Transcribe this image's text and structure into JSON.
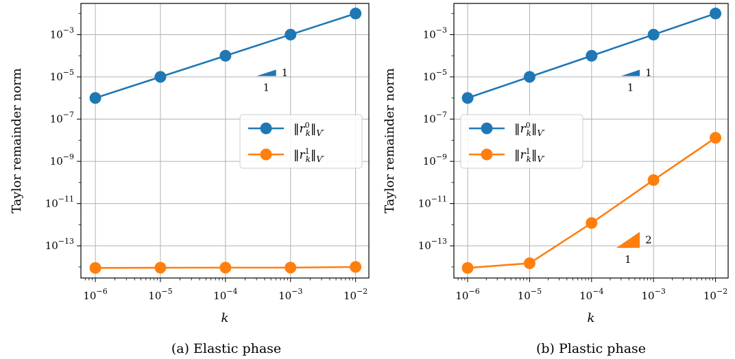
{
  "chart_data": [
    {
      "type": "line",
      "caption": "(a) Elastic phase",
      "xlabel": "k",
      "ylabel": "Taylor remainder norm",
      "x_scale": "log",
      "y_scale": "log",
      "xlim": [
        6e-07,
        0.016
      ],
      "ylim": [
        3e-15,
        0.03
      ],
      "xticks": [
        {
          "value": 1e-06,
          "base": "10",
          "exp": "−6"
        },
        {
          "value": 1e-05,
          "base": "10",
          "exp": "−5"
        },
        {
          "value": 0.0001,
          "base": "10",
          "exp": "−4"
        },
        {
          "value": 0.001,
          "base": "10",
          "exp": "−3"
        },
        {
          "value": 0.01,
          "base": "10",
          "exp": "−2"
        }
      ],
      "yticks": [
        {
          "value": 1e-13,
          "base": "10",
          "exp": "−13"
        },
        {
          "value": 1e-11,
          "base": "10",
          "exp": "−11"
        },
        {
          "value": 1e-09,
          "base": "10",
          "exp": "−9"
        },
        {
          "value": 1e-07,
          "base": "10",
          "exp": "−7"
        },
        {
          "value": 1e-05,
          "base": "10",
          "exp": "−5"
        },
        {
          "value": 0.001,
          "base": "10",
          "exp": "−3"
        }
      ],
      "grid": true,
      "legend_position": "center-right",
      "x": [
        1e-06,
        1e-05,
        0.0001,
        0.001,
        0.01
      ],
      "series": [
        {
          "name": "r0",
          "color": "#1f77b4",
          "values": [
            1e-06,
            1e-05,
            0.0001,
            0.001,
            0.01
          ]
        },
        {
          "name": "r1",
          "color": "#ff7f0e",
          "values": [
            9e-15,
            9.2e-15,
            9.3e-15,
            9.3e-15,
            1e-14
          ]
        }
      ],
      "slope_triangles": [
        {
          "color": "#1f77b4",
          "x_start": 0.0003,
          "x_end": 0.0006,
          "y_at_start": 1.1e-05,
          "rise_label": "1",
          "run_label": "1"
        }
      ]
    },
    {
      "type": "line",
      "caption": "(b) Plastic phase",
      "xlabel": "k",
      "ylabel": "Taylor remainder norm",
      "x_scale": "log",
      "y_scale": "log",
      "xlim": [
        6e-07,
        0.016
      ],
      "ylim": [
        3e-15,
        0.03
      ],
      "xticks": [
        {
          "value": 1e-06,
          "base": "10",
          "exp": "−6"
        },
        {
          "value": 1e-05,
          "base": "10",
          "exp": "−5"
        },
        {
          "value": 0.0001,
          "base": "10",
          "exp": "−4"
        },
        {
          "value": 0.001,
          "base": "10",
          "exp": "−3"
        },
        {
          "value": 0.01,
          "base": "10",
          "exp": "−2"
        }
      ],
      "yticks": [
        {
          "value": 1e-13,
          "base": "10",
          "exp": "−13"
        },
        {
          "value": 1e-11,
          "base": "10",
          "exp": "−11"
        },
        {
          "value": 1e-09,
          "base": "10",
          "exp": "−9"
        },
        {
          "value": 1e-07,
          "base": "10",
          "exp": "−7"
        },
        {
          "value": 1e-05,
          "base": "10",
          "exp": "−5"
        },
        {
          "value": 0.001,
          "base": "10",
          "exp": "−3"
        }
      ],
      "grid": true,
      "legend_position": "center-left",
      "x": [
        1e-06,
        1e-05,
        0.0001,
        0.001,
        0.01
      ],
      "series": [
        {
          "name": "r0",
          "color": "#1f77b4",
          "values": [
            1e-06,
            1e-05,
            0.0001,
            0.001,
            0.01
          ]
        },
        {
          "name": "r1",
          "color": "#ff7f0e",
          "values": [
            9e-15,
            1.5e-14,
            1.2e-12,
            1.3e-10,
            1.3e-08
          ]
        }
      ],
      "slope_triangles": [
        {
          "color": "#1f77b4",
          "x_start": 0.0003,
          "x_end": 0.0006,
          "y_at_start": 1.1e-05,
          "rise_label": "1",
          "run_label": "1"
        },
        {
          "color": "#ff7f0e",
          "x_start": 0.00025,
          "x_end": 0.0006,
          "y_at_start": 8e-14,
          "rise_label": "2",
          "run_label": "1"
        }
      ]
    }
  ]
}
